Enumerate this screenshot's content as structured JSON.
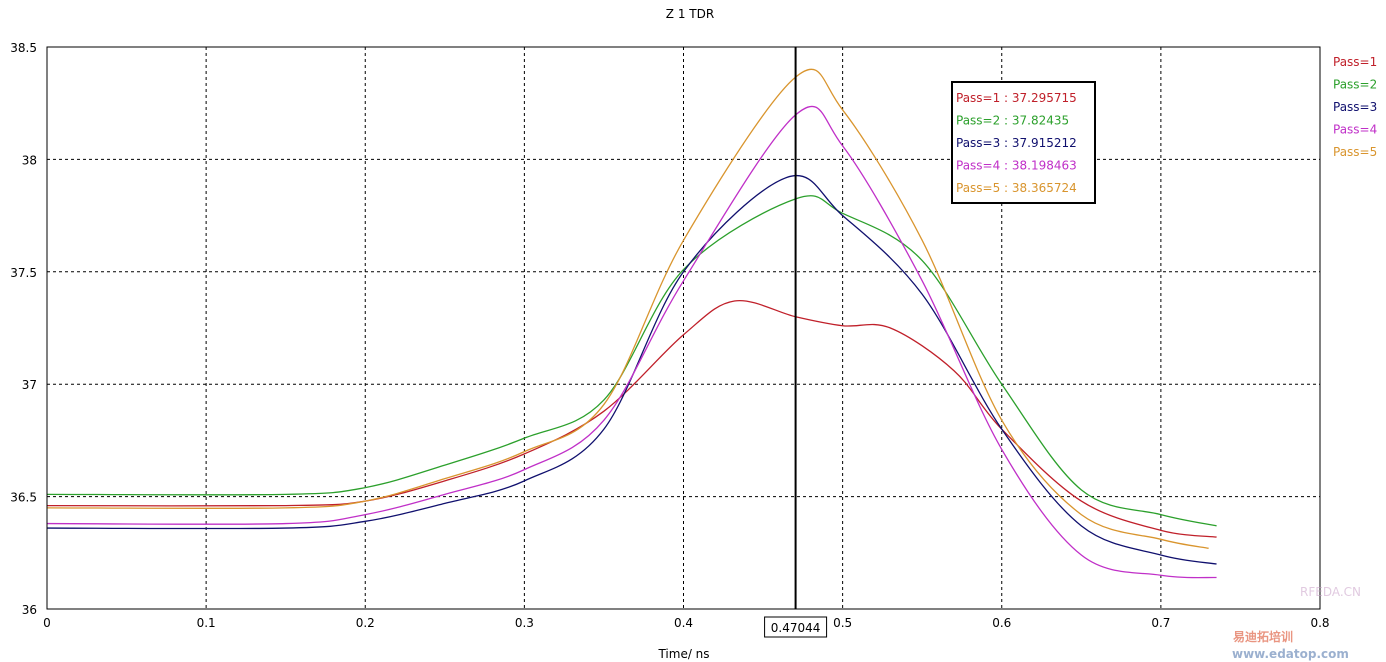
{
  "chart_data": {
    "type": "line",
    "title": "Z 1 TDR",
    "xlabel": "Time/ ns",
    "ylabel": "",
    "xlim": [
      0,
      0.8
    ],
    "ylim": [
      36,
      38.5
    ],
    "xticks": [
      "0",
      "0.1",
      "0.2",
      "0.3",
      "0.4",
      "0.5",
      "0.6",
      "0.7",
      "0.8"
    ],
    "xtick_values": [
      0,
      0.1,
      0.2,
      0.3,
      0.4,
      0.5,
      0.6,
      0.7,
      0.8
    ],
    "yticks": [
      "36",
      "36.5",
      "37",
      "37.5",
      "38",
      "38.5"
    ],
    "ytick_values": [
      36,
      36.5,
      37,
      37.5,
      38,
      38.5
    ],
    "grid": true,
    "legend_position": "right",
    "cursor": {
      "x": 0.47044,
      "label": "0.47044"
    },
    "series": [
      {
        "name": "Pass=1",
        "color": "#c0202a",
        "readout": "Pass=1 : 37.295715",
        "x": [
          0,
          0.15,
          0.2,
          0.25,
          0.3,
          0.35,
          0.4,
          0.432,
          0.47044,
          0.5,
          0.53,
          0.57,
          0.6,
          0.65,
          0.7,
          0.735
        ],
        "y": [
          36.46,
          36.46,
          36.48,
          36.57,
          36.69,
          36.88,
          37.22,
          37.37,
          37.3,
          37.26,
          37.25,
          37.06,
          36.8,
          36.48,
          36.35,
          36.32
        ]
      },
      {
        "name": "Pass=2",
        "color": "#2ca02c",
        "readout": "Pass=2 : 37.82435",
        "x": [
          0,
          0.15,
          0.2,
          0.25,
          0.3,
          0.35,
          0.4,
          0.47044,
          0.5,
          0.55,
          0.6,
          0.65,
          0.7,
          0.735
        ],
        "y": [
          36.51,
          36.51,
          36.54,
          36.64,
          36.76,
          36.93,
          37.51,
          37.82435,
          37.76,
          37.55,
          37.0,
          36.53,
          36.42,
          36.37
        ]
      },
      {
        "name": "Pass=3",
        "color": "#10106e",
        "readout": "Pass=3 : 37.915212",
        "x": [
          0,
          0.15,
          0.2,
          0.25,
          0.3,
          0.35,
          0.4,
          0.465,
          0.5,
          0.55,
          0.6,
          0.65,
          0.7,
          0.735
        ],
        "y": [
          36.36,
          36.36,
          36.39,
          36.47,
          36.57,
          36.8,
          37.5,
          37.92,
          37.75,
          37.4,
          36.8,
          36.37,
          36.24,
          36.2
        ]
      },
      {
        "name": "Pass=4",
        "color": "#c030c8",
        "readout": "Pass=4 : 38.198463",
        "x": [
          0,
          0.15,
          0.2,
          0.25,
          0.3,
          0.35,
          0.4,
          0.47044,
          0.5,
          0.55,
          0.6,
          0.65,
          0.7,
          0.735
        ],
        "y": [
          36.38,
          36.38,
          36.42,
          36.51,
          36.62,
          36.84,
          37.46,
          38.198,
          38.06,
          37.46,
          36.71,
          36.24,
          36.15,
          36.14
        ]
      },
      {
        "name": "Pass=5",
        "color": "#d9952e",
        "readout": "Pass=5 : 38.365724",
        "x": [
          0,
          0.15,
          0.2,
          0.25,
          0.3,
          0.35,
          0.4,
          0.47044,
          0.5,
          0.55,
          0.6,
          0.65,
          0.7,
          0.73
        ],
        "y": [
          36.45,
          36.45,
          36.48,
          36.58,
          36.7,
          36.91,
          37.64,
          38.366,
          38.22,
          37.64,
          36.84,
          36.42,
          36.31,
          36.27
        ]
      }
    ]
  },
  "watermark": {
    "main": "易迪拓培训",
    "url": "www.edatop.com",
    "small": "RFEDA.CN"
  }
}
